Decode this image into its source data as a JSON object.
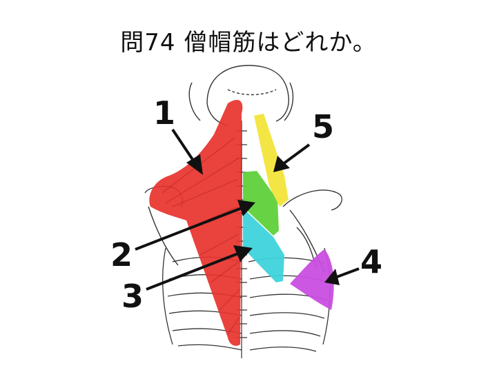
{
  "question": {
    "title": "問74 僧帽筋はどれか。"
  },
  "labels": {
    "l1": "1",
    "l2": "2",
    "l3": "3",
    "l4": "4",
    "l5": "5"
  },
  "colors": {
    "muscle1": "#e8322c",
    "muscle2": "#5fd13a",
    "muscle3": "#3fd3db",
    "muscle4": "#c94ee0",
    "muscle5": "#f2e53a",
    "bone_line": "#333333"
  }
}
